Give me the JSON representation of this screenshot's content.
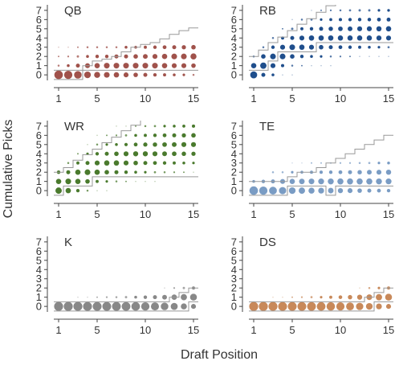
{
  "figure": {
    "xlabel": "Draft Position",
    "ylabel": "Cumulative Picks"
  },
  "chart_data": [
    {
      "type": "scatter",
      "title": "QB",
      "color": "#a0524b",
      "xlim": [
        0.5,
        15.5
      ],
      "ylim": [
        -0.6,
        7.6
      ],
      "xticks": [
        1,
        5,
        10,
        15
      ],
      "yticks": [
        0,
        1,
        2,
        3,
        4,
        5,
        6,
        7
      ],
      "expected": [
        0,
        0,
        0,
        0.5,
        1,
        1.2,
        1.5,
        2,
        2.5,
        2.8,
        3,
        3.4,
        3.9,
        4.3,
        4.6
      ],
      "modal": [
        0,
        0,
        0,
        1,
        1,
        1,
        1,
        1,
        1,
        1,
        1,
        1,
        1,
        1,
        1
      ],
      "prob": [
        [
          0.9,
          0.05,
          0.03,
          0.02
        ],
        [
          0.85,
          0.1,
          0.04,
          0.01
        ],
        [
          0.7,
          0.2,
          0.07,
          0.03
        ],
        [
          0.55,
          0.3,
          0.1,
          0.05
        ],
        [
          0.45,
          0.35,
          0.15,
          0.05
        ],
        [
          0.4,
          0.4,
          0.15,
          0.05
        ],
        [
          0.35,
          0.4,
          0.2,
          0.05
        ],
        [
          0.3,
          0.4,
          0.2,
          0.1
        ],
        [
          0.25,
          0.4,
          0.25,
          0.1
        ],
        [
          0.2,
          0.4,
          0.28,
          0.12
        ],
        [
          0.15,
          0.4,
          0.3,
          0.15
        ],
        [
          0.12,
          0.35,
          0.35,
          0.18
        ],
        [
          0.1,
          0.3,
          0.4,
          0.2
        ],
        [
          0.08,
          0.3,
          0.4,
          0.22
        ],
        [
          0.05,
          0.25,
          0.45,
          0.25
        ]
      ]
    },
    {
      "type": "scatter",
      "title": "RB",
      "color": "#1f4e8c",
      "xlim": [
        0.5,
        15.5
      ],
      "ylim": [
        -0.6,
        7.6
      ],
      "xticks": [
        1,
        5,
        10,
        15
      ],
      "yticks": [
        0,
        1,
        2,
        3,
        4,
        5,
        6,
        7
      ],
      "expected": [
        1.5,
        2.2,
        3,
        3.6,
        4.3,
        5,
        5.6,
        6.3,
        7,
        7.8,
        8.5,
        9.2,
        9.9,
        10.6,
        11.3
      ],
      "modal": [
        1,
        1,
        2,
        3,
        3,
        3,
        3,
        4,
        4,
        4,
        4,
        4,
        4,
        4,
        4
      ],
      "prob": [
        [
          0.6,
          0.35,
          0.05,
          0,
          0,
          0,
          0,
          0
        ],
        [
          0.2,
          0.5,
          0.25,
          0.05,
          0,
          0,
          0,
          0
        ],
        [
          0.1,
          0.3,
          0.4,
          0.15,
          0.05,
          0,
          0,
          0
        ],
        [
          0.02,
          0.13,
          0.4,
          0.3,
          0.12,
          0.03,
          0,
          0
        ],
        [
          0.01,
          0.05,
          0.25,
          0.4,
          0.2,
          0.07,
          0.02,
          0
        ],
        [
          0,
          0.03,
          0.15,
          0.35,
          0.3,
          0.12,
          0.05,
          0
        ],
        [
          0,
          0.02,
          0.1,
          0.3,
          0.35,
          0.15,
          0.06,
          0.02
        ],
        [
          0,
          0.01,
          0.08,
          0.25,
          0.35,
          0.2,
          0.08,
          0.03
        ],
        [
          0,
          0.01,
          0.05,
          0.2,
          0.35,
          0.24,
          0.11,
          0.04
        ],
        [
          0,
          0,
          0.04,
          0.18,
          0.34,
          0.26,
          0.13,
          0.05
        ],
        [
          0,
          0,
          0.03,
          0.15,
          0.34,
          0.28,
          0.14,
          0.06
        ],
        [
          0,
          0,
          0.02,
          0.12,
          0.34,
          0.3,
          0.15,
          0.07
        ],
        [
          0,
          0,
          0.02,
          0.1,
          0.34,
          0.31,
          0.16,
          0.07
        ],
        [
          0,
          0,
          0.01,
          0.08,
          0.32,
          0.33,
          0.18,
          0.08
        ],
        [
          0,
          0,
          0.01,
          0.06,
          0.3,
          0.35,
          0.19,
          0.09
        ]
      ]
    },
    {
      "type": "scatter",
      "title": "WR",
      "color": "#4a7a2d",
      "xlim": [
        0.5,
        15.5
      ],
      "ylim": [
        -0.6,
        7.6
      ],
      "xticks": [
        1,
        5,
        10,
        15
      ],
      "yticks": [
        0,
        1,
        2,
        3,
        4,
        5,
        6,
        7
      ],
      "expected": [
        1.5,
        2,
        2.8,
        3.4,
        4,
        4.7,
        5.3,
        6,
        6.6,
        7.4,
        8,
        8.8,
        9.5,
        10.2,
        11
      ],
      "modal": [
        0,
        1,
        1,
        1,
        2,
        2,
        2,
        2,
        2,
        2,
        2,
        2,
        2,
        2,
        2
      ],
      "prob": [
        [
          0.5,
          0.35,
          0.15,
          0,
          0,
          0,
          0,
          0
        ],
        [
          0.35,
          0.4,
          0.2,
          0.05,
          0,
          0,
          0,
          0
        ],
        [
          0.15,
          0.35,
          0.35,
          0.12,
          0.03,
          0,
          0,
          0
        ],
        [
          0.05,
          0.25,
          0.4,
          0.2,
          0.08,
          0.02,
          0,
          0
        ],
        [
          0.02,
          0.12,
          0.35,
          0.3,
          0.15,
          0.05,
          0.01,
          0
        ],
        [
          0.01,
          0.08,
          0.25,
          0.35,
          0.2,
          0.08,
          0.03,
          0
        ],
        [
          0,
          0.05,
          0.2,
          0.35,
          0.25,
          0.1,
          0.04,
          0.01
        ],
        [
          0,
          0.03,
          0.15,
          0.3,
          0.3,
          0.14,
          0.06,
          0.02
        ],
        [
          0,
          0.02,
          0.1,
          0.25,
          0.32,
          0.18,
          0.1,
          0.03
        ],
        [
          0,
          0.01,
          0.08,
          0.2,
          0.32,
          0.22,
          0.12,
          0.05
        ],
        [
          0,
          0.01,
          0.06,
          0.18,
          0.3,
          0.24,
          0.15,
          0.06
        ],
        [
          0,
          0,
          0.05,
          0.15,
          0.28,
          0.26,
          0.18,
          0.08
        ],
        [
          0,
          0,
          0.04,
          0.12,
          0.26,
          0.28,
          0.2,
          0.1
        ],
        [
          0,
          0,
          0.03,
          0.1,
          0.24,
          0.3,
          0.22,
          0.11
        ],
        [
          0,
          0,
          0.02,
          0.08,
          0.22,
          0.3,
          0.25,
          0.13
        ]
      ]
    },
    {
      "type": "scatter",
      "title": "TE",
      "color": "#7a9cc4",
      "xlim": [
        0.5,
        15.5
      ],
      "ylim": [
        -0.6,
        7.6
      ],
      "xticks": [
        1,
        5,
        10,
        15
      ],
      "yticks": [
        0,
        1,
        2,
        3,
        4,
        5,
        6,
        7
      ],
      "expected": [
        0.5,
        0.5,
        0.5,
        0.5,
        1,
        1.5,
        1.5,
        2,
        2.5,
        3,
        3.5,
        4,
        4.5,
        5,
        5.5
      ],
      "modal": [
        0,
        0,
        0,
        0,
        1,
        1,
        1,
        1,
        0,
        1,
        1,
        1,
        1,
        1,
        1
      ],
      "prob": [
        [
          0.9,
          0.1,
          0,
          0
        ],
        [
          0.85,
          0.15,
          0,
          0
        ],
        [
          0.75,
          0.2,
          0.05,
          0
        ],
        [
          0.65,
          0.3,
          0.05,
          0
        ],
        [
          0.55,
          0.35,
          0.08,
          0.02
        ],
        [
          0.5,
          0.38,
          0.1,
          0.02
        ],
        [
          0.45,
          0.4,
          0.12,
          0.03
        ],
        [
          0.42,
          0.42,
          0.13,
          0.03
        ],
        [
          0.38,
          0.44,
          0.15,
          0.03
        ],
        [
          0.32,
          0.46,
          0.18,
          0.04
        ],
        [
          0.3,
          0.46,
          0.2,
          0.04
        ],
        [
          0.25,
          0.46,
          0.24,
          0.05
        ],
        [
          0.2,
          0.46,
          0.28,
          0.06
        ],
        [
          0.18,
          0.44,
          0.3,
          0.08
        ],
        [
          0.15,
          0.42,
          0.33,
          0.1
        ]
      ]
    },
    {
      "type": "scatter",
      "title": "K",
      "color": "#888888",
      "xlim": [
        0.5,
        15.5
      ],
      "ylim": [
        -0.6,
        7.6
      ],
      "xticks": [
        1,
        5,
        10,
        15
      ],
      "yticks": [
        0,
        1,
        2,
        3,
        4,
        5,
        6,
        7
      ],
      "expected": [
        0,
        0,
        0,
        0,
        0,
        0,
        0,
        0,
        0,
        0,
        0,
        0,
        0.5,
        1,
        1.5
      ],
      "modal": [
        0,
        0,
        0,
        0,
        0,
        0,
        0,
        0,
        0,
        0,
        0,
        0,
        0,
        0,
        1
      ],
      "prob": [
        [
          1,
          0,
          0
        ],
        [
          1,
          0,
          0
        ],
        [
          0.99,
          0.01,
          0
        ],
        [
          0.98,
          0.02,
          0
        ],
        [
          0.97,
          0.03,
          0
        ],
        [
          0.96,
          0.04,
          0
        ],
        [
          0.95,
          0.05,
          0
        ],
        [
          0.93,
          0.07,
          0
        ],
        [
          0.9,
          0.1,
          0
        ],
        [
          0.85,
          0.15,
          0
        ],
        [
          0.8,
          0.2,
          0
        ],
        [
          0.7,
          0.28,
          0.02
        ],
        [
          0.6,
          0.36,
          0.04
        ],
        [
          0.45,
          0.48,
          0.07
        ],
        [
          0.3,
          0.58,
          0.12
        ]
      ]
    },
    {
      "type": "scatter",
      "title": "DS",
      "color": "#c8895a",
      "xlim": [
        0.5,
        15.5
      ],
      "ylim": [
        -0.6,
        7.6
      ],
      "xticks": [
        1,
        5,
        10,
        15
      ],
      "yticks": [
        0,
        1,
        2,
        3,
        4,
        5,
        6,
        7
      ],
      "expected": [
        0,
        0,
        0,
        0,
        0,
        0,
        0,
        0,
        0,
        0,
        0,
        0,
        0.5,
        1,
        1.5
      ],
      "modal": [
        0,
        0,
        0,
        0,
        0,
        0,
        0,
        0,
        0,
        0,
        0,
        0,
        0,
        1,
        1
      ],
      "prob": [
        [
          1,
          0,
          0
        ],
        [
          1,
          0,
          0
        ],
        [
          0.99,
          0.01,
          0
        ],
        [
          0.98,
          0.02,
          0
        ],
        [
          0.97,
          0.03,
          0
        ],
        [
          0.96,
          0.04,
          0
        ],
        [
          0.94,
          0.06,
          0
        ],
        [
          0.92,
          0.08,
          0
        ],
        [
          0.88,
          0.12,
          0
        ],
        [
          0.83,
          0.17,
          0
        ],
        [
          0.76,
          0.24,
          0
        ],
        [
          0.66,
          0.32,
          0.02
        ],
        [
          0.55,
          0.4,
          0.05
        ],
        [
          0.42,
          0.5,
          0.08
        ],
        [
          0.3,
          0.58,
          0.12
        ]
      ]
    }
  ]
}
